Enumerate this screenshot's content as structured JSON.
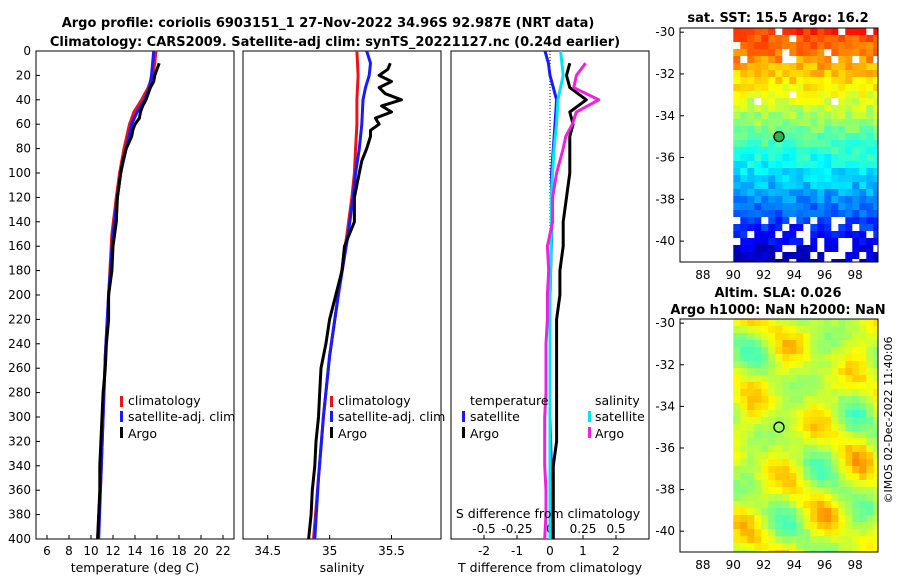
{
  "titles": {
    "line1": "Argo profile: coriolis 6903151_1 27-Nov-2022 34.96S 92.987E (NRT data)",
    "line2": "Climatology: CARS2009. Satellite-adj clim: synTS_20221127.nc (0.24d earlier)",
    "sst_title": "sat. SST: 15.5 Argo: 16.2",
    "sla_title1": "Altim. SLA: 0.026",
    "sla_title2": "Argo h1000: NaN h2000: NaN",
    "timestamp": "©IMOS 02-Dec-2022 11:40:06"
  },
  "colors": {
    "climatology": "#e8141c",
    "satellite": "#1a1aff",
    "argo": "#000000",
    "sal_satellite": "#00e5ee",
    "sal_argo": "#ee22dd"
  },
  "chart_data": [
    {
      "type": "line",
      "name": "temperature",
      "xlabel": "temperature (deg C)",
      "ylabel": "",
      "xlim": [
        5,
        23
      ],
      "ylim": [
        400,
        0
      ],
      "xticks": [
        "6",
        "8",
        "10",
        "12",
        "14",
        "16",
        "18",
        "20",
        "22"
      ],
      "yticks": [
        "0",
        "20",
        "40",
        "60",
        "80",
        "100",
        "120",
        "140",
        "160",
        "180",
        "200",
        "220",
        "240",
        "260",
        "280",
        "300",
        "320",
        "340",
        "360",
        "380",
        "400"
      ],
      "legend": [
        "climatology",
        "satellite-adj. clim",
        "Argo"
      ],
      "series": [
        {
          "name": "climatology",
          "depth": [
            0,
            10,
            20,
            30,
            40,
            50,
            60,
            80,
            100,
            120,
            150,
            200,
            250,
            300,
            350,
            400
          ],
          "values": [
            15.9,
            15.8,
            15.6,
            15.2,
            14.6,
            13.9,
            13.5,
            13.0,
            12.6,
            12.3,
            11.9,
            11.6,
            11.3,
            11.1,
            10.9,
            10.6
          ]
        },
        {
          "name": "satellite-adj. clim",
          "depth": [
            0,
            10,
            20,
            30,
            40,
            50,
            60,
            80,
            100,
            120,
            150,
            200,
            250,
            300,
            350,
            400
          ],
          "values": [
            15.7,
            15.6,
            15.5,
            15.3,
            14.9,
            14.2,
            13.7,
            13.2,
            12.7,
            12.4,
            12.0,
            11.6,
            11.3,
            11.1,
            10.9,
            10.7
          ]
        },
        {
          "name": "Argo",
          "depth": [
            10,
            15,
            20,
            25,
            30,
            35,
            40,
            45,
            50,
            55,
            60,
            65,
            70,
            80,
            90,
            100,
            120,
            140,
            160,
            180,
            200,
            220,
            240,
            260,
            280,
            300,
            320,
            340,
            360,
            380,
            400
          ],
          "values": [
            16.2,
            16.0,
            15.8,
            15.7,
            15.4,
            15.2,
            15.0,
            14.7,
            14.5,
            14.4,
            14.0,
            13.8,
            13.7,
            13.2,
            12.9,
            12.7,
            12.4,
            12.3,
            12.0,
            11.9,
            11.6,
            11.6,
            11.4,
            11.3,
            11.1,
            11.0,
            10.9,
            10.8,
            10.8,
            10.7,
            10.6
          ]
        }
      ]
    },
    {
      "type": "line",
      "name": "salinity",
      "xlabel": "salinity",
      "xlim": [
        34.3,
        35.9
      ],
      "ylim": [
        400,
        0
      ],
      "xticks": [
        "34.5",
        "35",
        "35.5"
      ],
      "legend": [
        "climatology",
        "satellite-adj. clim",
        "Argo"
      ],
      "series": [
        {
          "name": "climatology",
          "depth": [
            0,
            20,
            40,
            60,
            80,
            100,
            120,
            150,
            200,
            250,
            300,
            350,
            400
          ],
          "values": [
            35.22,
            35.23,
            35.22,
            35.22,
            35.21,
            35.2,
            35.18,
            35.14,
            35.07,
            35.0,
            34.95,
            34.91,
            34.87
          ]
        },
        {
          "name": "satellite-adj. clim",
          "depth": [
            0,
            10,
            20,
            30,
            40,
            60,
            80,
            100,
            120,
            150,
            200,
            250,
            300,
            350,
            400
          ],
          "values": [
            35.3,
            35.33,
            35.32,
            35.29,
            35.27,
            35.26,
            35.24,
            35.21,
            35.19,
            35.15,
            35.07,
            35.0,
            34.95,
            34.91,
            34.88
          ]
        },
        {
          "name": "Argo",
          "depth": [
            10,
            15,
            20,
            25,
            30,
            35,
            40,
            45,
            50,
            55,
            60,
            65,
            70,
            80,
            90,
            100,
            120,
            140,
            160,
            180,
            200,
            220,
            240,
            260,
            280,
            300,
            320,
            340,
            360,
            380,
            400
          ],
          "values": [
            35.49,
            35.47,
            35.4,
            35.5,
            35.4,
            35.45,
            35.58,
            35.42,
            35.5,
            35.37,
            35.4,
            35.33,
            35.33,
            35.3,
            35.26,
            35.24,
            35.2,
            35.2,
            35.12,
            35.1,
            35.05,
            35.0,
            34.97,
            34.93,
            34.92,
            34.91,
            34.89,
            34.88,
            34.86,
            34.85,
            34.83
          ]
        }
      ]
    },
    {
      "type": "line",
      "name": "difference",
      "xlabel": "T difference from climatology",
      "xlabel_top": "S difference from climatology",
      "xlim": [
        -3,
        3
      ],
      "xlim_top": [
        -0.75,
        0.75
      ],
      "ylim": [
        400,
        0
      ],
      "xticks": [
        "-2",
        "-1",
        "0",
        "1",
        "2"
      ],
      "xticks_top": [
        "-0.5",
        "-0.25",
        "0",
        "0.25",
        "0.5"
      ],
      "legend_left_title": "temperature",
      "legend_right_title": "salinity",
      "legend_left": [
        "satellite",
        "Argo"
      ],
      "legend_right": [
        "satellite",
        "Argo"
      ],
      "series": [
        {
          "name": "T satellite",
          "axis": "T",
          "depth": [
            0,
            10,
            20,
            40,
            60,
            80,
            100,
            150,
            200,
            250,
            300,
            350,
            400
          ],
          "values": [
            -0.15,
            -0.05,
            0.0,
            0.2,
            0.15,
            0.1,
            0.05,
            0.05,
            0.0,
            0.0,
            0.0,
            0.05,
            0.05
          ]
        },
        {
          "name": "T Argo",
          "axis": "T",
          "depth": [
            10,
            20,
            30,
            40,
            50,
            60,
            70,
            80,
            100,
            120,
            140,
            160,
            180,
            200,
            220,
            240,
            260,
            280,
            300,
            320,
            340,
            360,
            380,
            400
          ],
          "values": [
            0.6,
            0.5,
            0.6,
            1.1,
            0.6,
            0.7,
            0.6,
            0.6,
            0.6,
            0.5,
            0.4,
            0.4,
            0.3,
            0.3,
            0.2,
            0.2,
            0.2,
            0.2,
            0.2,
            0.2,
            0.1,
            0.1,
            0.1,
            0.1
          ]
        },
        {
          "name": "S satellite",
          "axis": "S",
          "depth": [
            0,
            20,
            40,
            60,
            80,
            100,
            120,
            150,
            200,
            250,
            300,
            350,
            400
          ],
          "values": [
            0.08,
            0.1,
            0.06,
            0.05,
            0.03,
            0.02,
            0.01,
            0.01,
            0.0,
            0.0,
            0.0,
            0.0,
            0.0
          ]
        },
        {
          "name": "S Argo",
          "axis": "S",
          "depth": [
            10,
            20,
            30,
            40,
            50,
            60,
            70,
            80,
            100,
            120,
            140,
            160,
            180,
            200,
            220,
            240,
            260,
            280,
            300,
            320,
            340,
            360,
            380,
            400
          ],
          "values": [
            0.27,
            0.2,
            0.18,
            0.37,
            0.2,
            0.17,
            0.12,
            0.1,
            0.05,
            0.02,
            0.02,
            -0.02,
            -0.01,
            -0.02,
            -0.02,
            -0.03,
            -0.03,
            -0.03,
            -0.04,
            -0.04,
            -0.04,
            -0.03,
            -0.03,
            -0.04
          ]
        }
      ]
    },
    {
      "type": "heatmap",
      "name": "sst_map",
      "xlim": [
        86.5,
        99.5
      ],
      "ylim": [
        -41,
        -29.8
      ],
      "xticks": [
        "88",
        "90",
        "92",
        "94",
        "96",
        "98"
      ],
      "yticks": [
        "-30",
        "-32",
        "-34",
        "-36",
        "-38",
        "-40"
      ],
      "data_xrange": [
        90,
        99.5
      ],
      "marker": {
        "lon": 93,
        "lat": -35
      }
    },
    {
      "type": "heatmap",
      "name": "sla_map",
      "xlim": [
        86.5,
        99.5
      ],
      "ylim": [
        -41,
        -29.8
      ],
      "xticks": [
        "88",
        "90",
        "92",
        "94",
        "96",
        "98"
      ],
      "yticks": [
        "-30",
        "-32",
        "-34",
        "-36",
        "-38",
        "-40"
      ],
      "data_xrange": [
        90,
        99.5
      ],
      "marker": {
        "lon": 93,
        "lat": -35
      }
    }
  ]
}
